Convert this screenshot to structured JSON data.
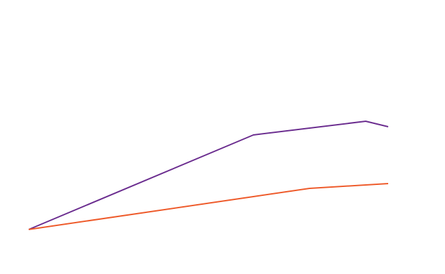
{
  "chart_data": {
    "type": "line",
    "x": [
      0,
      10,
      12.5,
      15,
      16
    ],
    "series": [
      {
        "color": "#6b2d8f",
        "values": [
          0,
          69,
          74,
          79,
          75
        ]
      },
      {
        "color": "#ee5a2a",
        "values": [
          0,
          24,
          30,
          32.5,
          33.5
        ]
      }
    ],
    "xlim": [
      0,
      16
    ],
    "ylim": [
      0,
      100
    ]
  }
}
